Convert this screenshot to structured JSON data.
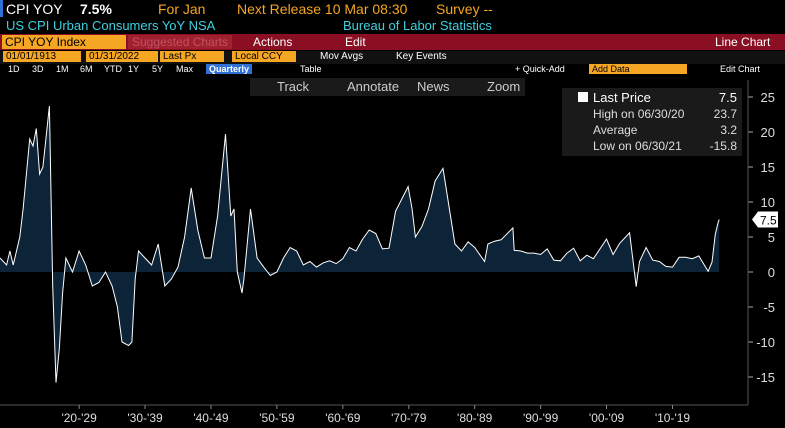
{
  "header": {
    "ticker": "CPI YOY",
    "last": "7.5%",
    "period": "For Jan",
    "next_release": "Next Release 10 Mar 08:30",
    "survey": "Survey --",
    "description": "US CPI Urban Consumers YoY NSA",
    "source": "Bureau of Labor Statistics"
  },
  "toolbar": {
    "security": "CPI YOY Index",
    "suggested": "Suggested Charts",
    "actions": "Actions",
    "edit": "Edit",
    "chart_kind": "Line Chart"
  },
  "settings": {
    "start": "01/01/1913",
    "end": "01/31/2022",
    "field": "Last Px",
    "currency": "Local CCY",
    "mov_avgs": "Mov Avgs",
    "key_events": "Key Events"
  },
  "ranges": [
    "1D",
    "3D",
    "1M",
    "6M",
    "YTD",
    "1Y",
    "5Y",
    "Max"
  ],
  "frequency": "Quarterly",
  "table": "Table",
  "quick_add": "+ Quick-Add",
  "add_data": "Add Data",
  "edit_chart": "Edit Chart",
  "chart_tools": [
    "Track",
    "Annotate",
    "News",
    "Zoom"
  ],
  "chart_data": {
    "type": "area",
    "x": [
      1913,
      1914,
      1914.5,
      1915,
      1916,
      1916.5,
      1917,
      1917.5,
      1918,
      1918.5,
      1919,
      1919.5,
      1920.5,
      1921,
      1921.5,
      1922,
      1922.5,
      1923,
      1924,
      1925,
      1926,
      1927,
      1928,
      1929,
      1930,
      1930.8,
      1931.5,
      1932.5,
      1933,
      1933.5,
      1934,
      1935,
      1936,
      1937,
      1938,
      1939,
      1940,
      1941,
      1942,
      1943,
      1944,
      1945,
      1946,
      1947.2,
      1948,
      1948.5,
      1949,
      1949.7,
      1950,
      1951,
      1952,
      1953,
      1954,
      1955,
      1956,
      1957,
      1958,
      1959,
      1960,
      1961,
      1962,
      1963,
      1964,
      1965,
      1966,
      1967,
      1968,
      1969,
      1970,
      1971,
      1972,
      1973,
      1974.9,
      1975.5,
      1976,
      1977,
      1978,
      1979,
      1980.2,
      1981,
      1982,
      1983,
      1984,
      1985,
      1986.5,
      1987,
      1988,
      1989,
      1990.8,
      1991,
      1992,
      1993,
      1994,
      1995,
      1996,
      1997,
      1998,
      1999,
      2000,
      2001,
      2002,
      2003,
      2004,
      2005,
      2006,
      2007,
      2008.5,
      2009.5,
      2010,
      2011,
      2012,
      2013,
      2014,
      2015,
      2016,
      2017,
      2018,
      2019,
      2020.4,
      2021,
      2021.5,
      2021.9,
      2022.08
    ],
    "series": [
      {
        "name": "Last Price",
        "color": "#ffffff",
        "fill": "#0d2438",
        "values": [
          2,
          1,
          3,
          1,
          5,
          9,
          14,
          19,
          18,
          20.5,
          14,
          15,
          23.7,
          -2,
          -15.8,
          -11,
          -3,
          2,
          0,
          3,
          1,
          -2,
          -1.5,
          0,
          -2,
          -5,
          -10,
          -10.5,
          -10,
          -1,
          3,
          2,
          1,
          4,
          -2,
          -1,
          0.7,
          5,
          12,
          6,
          2,
          2,
          8,
          19.7,
          8,
          9,
          0,
          -3,
          -1,
          9,
          2,
          0.7,
          -0.5,
          0,
          2,
          3.5,
          3,
          1,
          1.5,
          0.7,
          1.3,
          1.6,
          1.2,
          1.9,
          3.5,
          3,
          4.7,
          6,
          5.5,
          3.3,
          3.4,
          8.7,
          12.2,
          9,
          5,
          6.5,
          9,
          13,
          14.8,
          10,
          4,
          3,
          4.3,
          3.5,
          1.5,
          4,
          4.4,
          4.6,
          6.3,
          3.1,
          3,
          2.7,
          2.7,
          2.5,
          3.3,
          1.7,
          1.6,
          2.7,
          3.4,
          1.6,
          2.4,
          1.9,
          3.3,
          4.7,
          2.5,
          4.1,
          5.6,
          -2.1,
          1.5,
          3.5,
          1.7,
          1.5,
          0.8,
          0.7,
          2.1,
          2.1,
          1.9,
          2.3,
          0.1,
          1.4,
          5.4,
          7,
          7.5
        ]
      }
    ],
    "xlim": [
      1913,
      2026
    ],
    "xticks": [
      {
        "value": 1925,
        "label": "'20-'29"
      },
      {
        "value": 1935,
        "label": "'30-'39"
      },
      {
        "value": 1945,
        "label": "'40-'49"
      },
      {
        "value": 1955,
        "label": "'50-'59"
      },
      {
        "value": 1965,
        "label": "'60-'69"
      },
      {
        "value": 1975,
        "label": "'70-'79"
      },
      {
        "value": 1985,
        "label": "'80-'89"
      },
      {
        "value": 1995,
        "label": "'90-'99"
      },
      {
        "value": 2005,
        "label": "'00-'09"
      },
      {
        "value": 2015,
        "label": "'10-'19"
      }
    ],
    "ylim": [
      -19,
      26
    ],
    "yticks": [
      -15,
      -10,
      -5,
      0,
      5,
      10,
      15,
      20,
      25
    ],
    "legend_stats": [
      {
        "label": "High on 06/30/20",
        "value": 23.7
      },
      {
        "label": "Average",
        "value": 3.2
      },
      {
        "label": "Low on 06/30/21",
        "value": -15.8
      }
    ]
  }
}
